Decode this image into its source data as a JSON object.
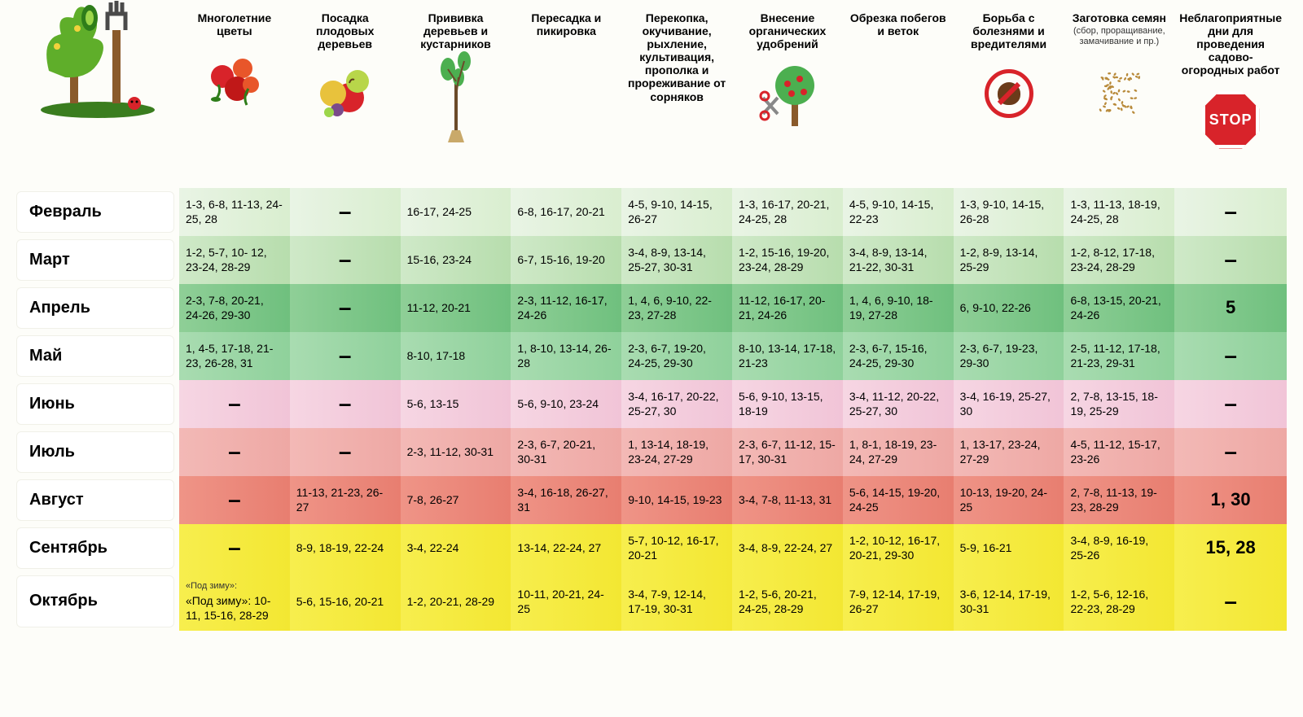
{
  "columns": [
    {
      "title": "Многолетние цветы",
      "sub": ""
    },
    {
      "title": "Посадка плодовых деревьев",
      "sub": ""
    },
    {
      "title": "Прививка деревьев и кустарников",
      "sub": ""
    },
    {
      "title": "Пересадка и пикировка",
      "sub": ""
    },
    {
      "title": "Перекопка, окучивание, рыхление, культивация, прополка и прореживание от сорняков",
      "sub": ""
    },
    {
      "title": "Внесение органических удобрений",
      "sub": ""
    },
    {
      "title": "Обрезка побегов и веток",
      "sub": ""
    },
    {
      "title": "Борьба с болезнями и вредителями",
      "sub": ""
    },
    {
      "title": "Заготовка семян",
      "sub": "(сбор, проращивание, замачивание и пр.)"
    },
    {
      "title": "Неблагоприятные дни для проведения садово-огородных работ",
      "sub": ""
    }
  ],
  "row_colors": {
    "feb": [
      "#e9f4e5",
      "#d9eecf"
    ],
    "mar": [
      "#cfe9c8",
      "#b7ddad"
    ],
    "apr": [
      "#8fcf97",
      "#6fc07e"
    ],
    "may": [
      "#a9dcb1",
      "#8fd19b"
    ],
    "jun": [
      "#f6d6e3",
      "#f1c4d7"
    ],
    "jul": [
      "#f3b9b6",
      "#eea8a4"
    ],
    "aug": [
      "#ef9487",
      "#e87e70"
    ],
    "sep": [
      "#f7ee4e",
      "#f3e732"
    ],
    "oct": [
      "#f7ee4e",
      "#f3e732"
    ]
  },
  "months": [
    {
      "k": "feb",
      "name": "Февраль",
      "cells": [
        "1-3, 6-8, 11-13, 24-25, 28",
        "–",
        "16-17, 24-25",
        "6-8, 16-17, 20-21",
        "4-5, 9-10, 14-15, 26-27",
        "1-3, 16-17, 20-21, 24-25, 28",
        "4-5, 9-10, 14-15, 22-23",
        "1-3, 9-10, 14-15, 26-28",
        "1-3, 11-13, 18-19, 24-25, 28",
        "–"
      ]
    },
    {
      "k": "mar",
      "name": "Март",
      "cells": [
        "1-2, 5-7, 10- 12, 23-24, 28-29",
        "–",
        "15-16, 23-24",
        "6-7, 15-16, 19-20",
        "3-4, 8-9, 13-14, 25-27, 30-31",
        "1-2, 15-16, 19-20, 23-24, 28-29",
        "3-4, 8-9, 13-14, 21-22, 30-31",
        "1-2, 8-9, 13-14, 25-29",
        "1-2, 8-12, 17-18, 23-24, 28-29",
        "–"
      ]
    },
    {
      "k": "apr",
      "name": "Апрель",
      "cells": [
        "2-3, 7-8, 20-21, 24-26, 29-30",
        "–",
        "11-12, 20-21",
        "2-3, 11-12, 16-17, 24-26",
        "1, 4, 6, 9-10, 22-23, 27-28",
        "11-12, 16-17, 20-21, 24-26",
        "1, 4, 6, 9-10, 18-19, 27-28",
        "6, 9-10, 22-26",
        "6-8, 13-15, 20-21, 24-26",
        "5"
      ]
    },
    {
      "k": "may",
      "name": "Май",
      "cells": [
        "1, 4-5, 17-18, 21-23, 26-28, 31",
        "–",
        "8-10, 17-18",
        "1, 8-10, 13-14, 26-28",
        "2-3, 6-7, 19-20, 24-25, 29-30",
        "8-10, 13-14, 17-18, 21-23",
        "2-3, 6-7, 15-16, 24-25, 29-30",
        "2-3, 6-7, 19-23, 29-30",
        "2-5, 11-12, 17-18, 21-23, 29-31",
        "–"
      ]
    },
    {
      "k": "jun",
      "name": "Июнь",
      "cells": [
        "–",
        "–",
        "5-6, 13-15",
        "5-6, 9-10, 23-24",
        "3-4, 16-17, 20-22, 25-27, 30",
        "5-6, 9-10, 13-15, 18-19",
        "3-4, 11-12, 20-22, 25-27, 30",
        "3-4, 16-19, 25-27, 30",
        "2, 7-8, 13-15, 18-19, 25-29",
        "–"
      ]
    },
    {
      "k": "jul",
      "name": "Июль",
      "cells": [
        "–",
        "–",
        "2-3, 11-12, 30-31",
        "2-3, 6-7, 20-21, 30-31",
        "1, 13-14, 18-19, 23-24, 27-29",
        "2-3, 6-7, 11-12, 15-17, 30-31",
        "1, 8-1, 18-19, 23-24, 27-29",
        "1, 13-17, 23-24, 27-29",
        "4-5, 11-12, 15-17, 23-26",
        "–"
      ]
    },
    {
      "k": "aug",
      "name": "Август",
      "cells": [
        "–",
        "11-13, 21-23, 26-27",
        "7-8, 26-27",
        "3-4, 16-18, 26-27, 31",
        "9-10, 14-15, 19-23",
        "3-4, 7-8, 11-13, 31",
        "5-6, 14-15, 19-20, 24-25",
        "10-13, 19-20, 24-25",
        "2, 7-8, 11-13, 19-23, 28-29",
        "1, 30"
      ]
    },
    {
      "k": "sep",
      "name": "Сентябрь",
      "cells": [
        "–",
        "8-9, 18-19, 22-24",
        "3-4, 22-24",
        "13-14, 22-24, 27",
        "5-7, 10-12, 16-17, 20-21",
        "3-4, 8-9, 22-24, 27",
        "1-2, 10-12, 16-17, 20-21, 29-30",
        "5-9, 16-21",
        "3-4, 8-9, 16-19, 25-26",
        "15, 28"
      ]
    },
    {
      "k": "oct",
      "name": "Октябрь",
      "cells": [
        "«Под зиму»: 10-11, 15-16, 28-29",
        "5-6, 15-16, 20-21",
        "1-2, 20-21, 28-29",
        "10-11, 20-21, 24-25",
        "3-4, 7-9, 12-14, 17-19, 30-31",
        "1-2, 5-6, 20-21, 24-25, 28-29",
        "7-9, 12-14, 17-19, 26-27",
        "3-6, 12-14, 17-19, 30-31",
        "1-2, 5-6, 12-16, 22-23, 28-29",
        "–"
      ]
    }
  ],
  "stop_text": "STOP"
}
